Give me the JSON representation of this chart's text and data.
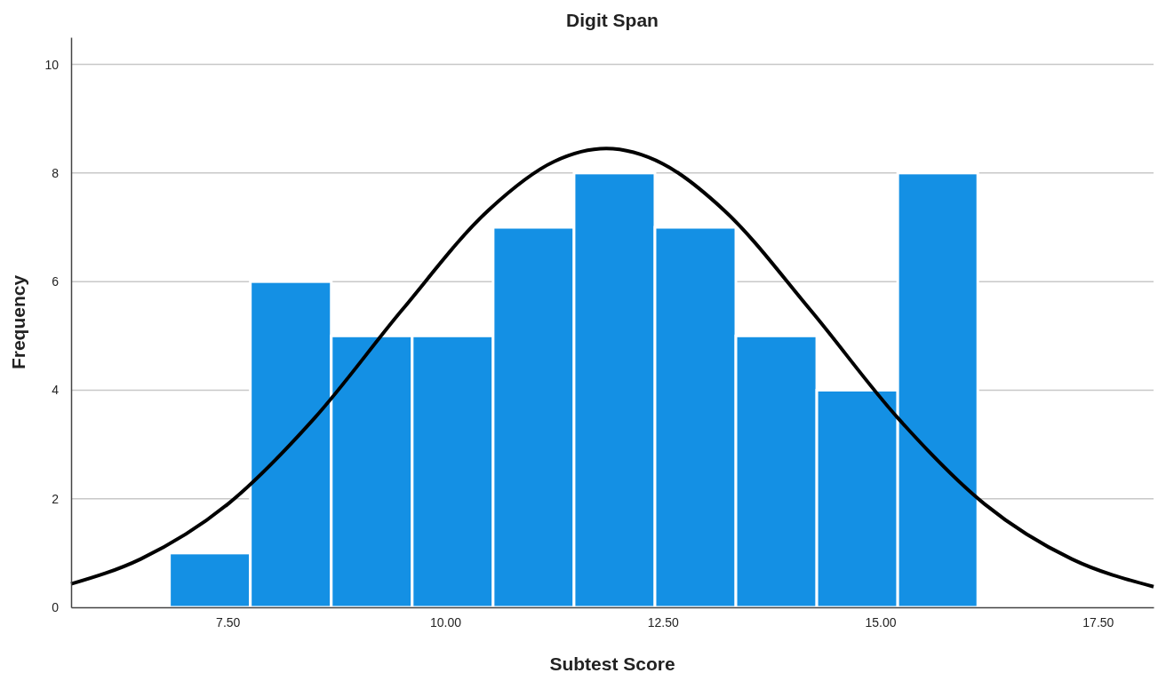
{
  "chart_data": {
    "type": "histogram",
    "title": "Digit Span",
    "xlabel": "Subtest Score",
    "ylabel": "Frequency",
    "bins": [
      6.83,
      7.76,
      8.69,
      9.62,
      10.55,
      11.48,
      12.41,
      13.34,
      14.27,
      15.2,
      16.12
    ],
    "values": [
      1,
      6,
      5,
      5,
      7,
      8,
      7,
      5,
      4,
      8
    ],
    "color": "#1490e4",
    "series": [
      {
        "type": "line",
        "color": "#000000",
        "x": [
          5.7,
          6.5,
          7.5,
          8.5,
          9.5,
          10.5,
          11.25,
          11.85,
          12.5,
          13.2,
          14.2,
          15.2,
          16.2,
          17.2,
          18.14
        ],
        "values": [
          0.43,
          0.89,
          1.9,
          3.49,
          5.47,
          7.32,
          8.21,
          8.45,
          8.17,
          7.32,
          5.47,
          3.49,
          1.9,
          0.89,
          0.38
        ]
      }
    ],
    "xlim": [
      5.7,
      18.14
    ],
    "ylim": [
      0,
      10.5
    ],
    "xticks": [
      {
        "value": 7.5,
        "label": "7.50"
      },
      {
        "value": 10,
        "label": "10.00"
      },
      {
        "value": 12.5,
        "label": "12.50"
      },
      {
        "value": 15,
        "label": "15.00"
      },
      {
        "value": 17.5,
        "label": "17.50"
      }
    ],
    "yticks": [
      0,
      2,
      4,
      6,
      8,
      10
    ],
    "grid": "y",
    "line_style": "solid",
    "marker": "none"
  }
}
